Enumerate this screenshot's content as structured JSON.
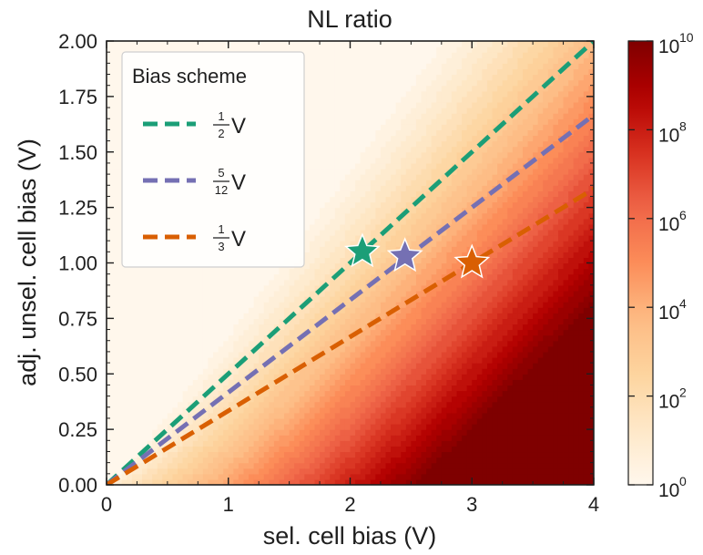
{
  "chart_data": {
    "type": "heatmap",
    "title": "NL ratio",
    "xlabel": "sel. cell bias (V)",
    "ylabel": "adj. unsel. cell bias (V)",
    "xlim": [
      0,
      4
    ],
    "ylim": [
      0,
      2
    ],
    "x_ticks": [
      "0",
      "1",
      "2",
      "3",
      "4"
    ],
    "y_ticks": [
      "0.00",
      "0.25",
      "0.50",
      "0.75",
      "1.00",
      "1.25",
      "1.50",
      "1.75",
      "2.00"
    ],
    "colorbar": {
      "scale": "log",
      "range": [
        1,
        10000000000
      ],
      "tick_labels": [
        "10",
        "10",
        "10",
        "10",
        "10",
        "10"
      ],
      "tick_exponents": [
        "0",
        "2",
        "4",
        "6",
        "8",
        "10"
      ],
      "colormap": "OrRd",
      "levels": 30
    },
    "legend": {
      "title": "Bias scheme",
      "placement": "top-left",
      "items": [
        {
          "numerator": "1",
          "denominator": "2",
          "suffix": "V",
          "color": "#1b9e77",
          "slope": 0.5
        },
        {
          "numerator": "5",
          "denominator": "12",
          "suffix": "V",
          "color": "#7570b3",
          "slope": 0.4167
        },
        {
          "numerator": "1",
          "denominator": "3",
          "suffix": "V",
          "color": "#d95f02",
          "slope": 0.3333
        }
      ]
    },
    "series": [
      {
        "color": "#1b9e77",
        "x": [
          0,
          4
        ],
        "y": [
          0,
          2
        ]
      },
      {
        "color": "#7570b3",
        "x": [
          0,
          4
        ],
        "y": [
          0,
          1.6667
        ]
      },
      {
        "color": "#d95f02",
        "x": [
          0,
          4
        ],
        "y": [
          0,
          1.3333
        ]
      }
    ],
    "markers": [
      {
        "x": 2.1,
        "y": 1.05,
        "color": "#1b9e77",
        "shape": "star"
      },
      {
        "x": 2.45,
        "y": 1.03,
        "color": "#7570b3",
        "shape": "star"
      },
      {
        "x": 3.0,
        "y": 1.0,
        "color": "#d95f02",
        "shape": "star"
      }
    ],
    "grid": false
  }
}
